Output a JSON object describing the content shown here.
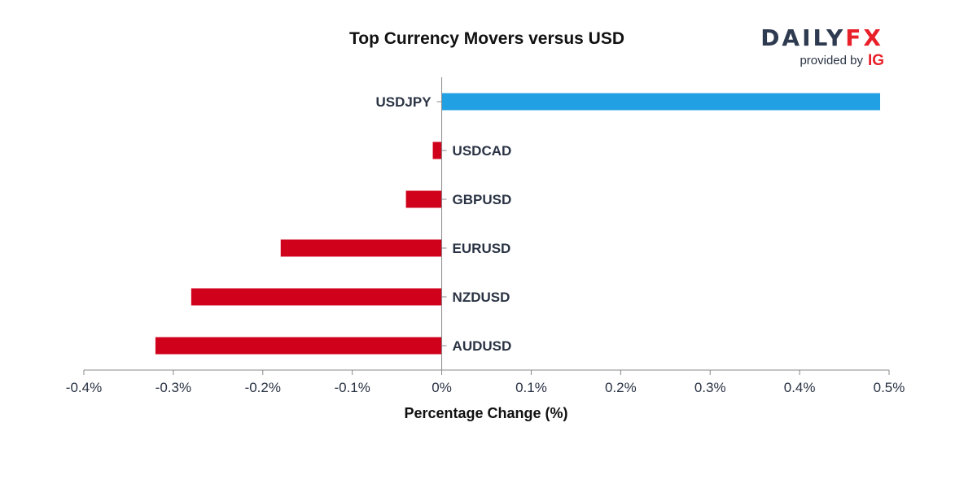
{
  "chart_data": {
    "type": "bar",
    "orientation": "horizontal",
    "title": "Top Currency Movers versus USD",
    "xlabel": "Percentage Change (%)",
    "ylabel": "",
    "categories": [
      "USDJPY",
      "USDCAD",
      "GBPUSD",
      "EURUSD",
      "NZDUSD",
      "AUDUSD"
    ],
    "values": [
      0.49,
      -0.01,
      -0.04,
      -0.18,
      -0.28,
      -0.32
    ],
    "xlim": [
      -0.4,
      0.5
    ],
    "ticks": [
      -0.4,
      -0.3,
      -0.2,
      -0.1,
      0,
      0.1,
      0.2,
      0.3,
      0.4,
      0.5
    ],
    "tick_labels": [
      "-0.4%",
      "-0.3%",
      "-0.2%",
      "-0.1%",
      "0%",
      "0.1%",
      "0.2%",
      "0.3%",
      "0.4%",
      "0.5%"
    ],
    "grid": false,
    "legend": "none",
    "colors": {
      "positive": "#21a0e3",
      "negative": "#d0021b"
    }
  },
  "branding": {
    "logo_part1": "DAILY",
    "logo_part2": "FX",
    "provided_by": "provided by",
    "ig": "IG",
    "colors": {
      "daily": "#2e3a4f",
      "fx": "#e8202a",
      "ig": "#e8202a"
    }
  },
  "colors": {
    "axis": "#888888",
    "text": "#2a3344"
  }
}
